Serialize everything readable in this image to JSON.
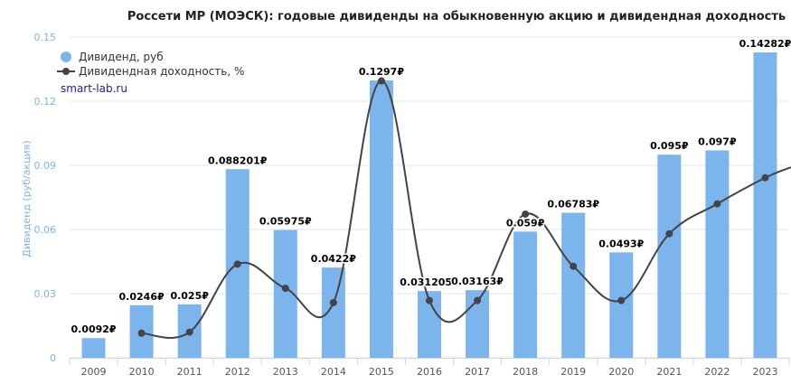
{
  "chart_data": {
    "type": "bar",
    "title": "Россети МР (МОЭСК): годовые дивиденды на обыкновенную акцию и дивидендная доходность",
    "ylabel": "Дивиденд (руб/акция)",
    "ylim": [
      0,
      0.15
    ],
    "yticks": [
      "0",
      "0.03",
      "0.06",
      "0.09",
      "0.12",
      "0.15"
    ],
    "categories": [
      "2009",
      "2010",
      "2011",
      "2012",
      "2013",
      "2014",
      "2015",
      "2016",
      "2017",
      "2018",
      "2019",
      "2020",
      "2021",
      "2022",
      "2023"
    ],
    "series": [
      {
        "name": "Дивиденд, руб",
        "type": "bar",
        "color": "#7cb5ec",
        "values": [
          0.0092,
          0.0246,
          0.025,
          0.088201,
          0.05975,
          0.0422,
          0.1297,
          0.031205,
          0.03163,
          0.059,
          0.06783,
          0.0493,
          0.095,
          0.097,
          0.14282
        ],
        "labels": [
          "0.0092₽",
          "0.0246₽",
          "0.025₽",
          "0.088201₽",
          "0.05975₽",
          "0.0422₽",
          "0.1297₽",
          "0.031205₽",
          "0.03163₽",
          "0.059₽",
          "0.06783₽",
          "0.0493₽",
          "0.095₽",
          "0.097₽",
          "0.14282₽"
        ]
      },
      {
        "name": "Дивидендная доходность, %",
        "type": "line",
        "color": "#434348",
        "values": [
          null,
          0.0115,
          0.012,
          0.0438,
          0.0325,
          0.0258,
          0.1295,
          0.0268,
          0.0268,
          0.0672,
          0.0428,
          0.0268,
          0.058,
          0.072,
          0.0842
        ]
      }
    ],
    "legend_position": "top-left",
    "grid": true
  },
  "credit": "smart-lab.ru"
}
